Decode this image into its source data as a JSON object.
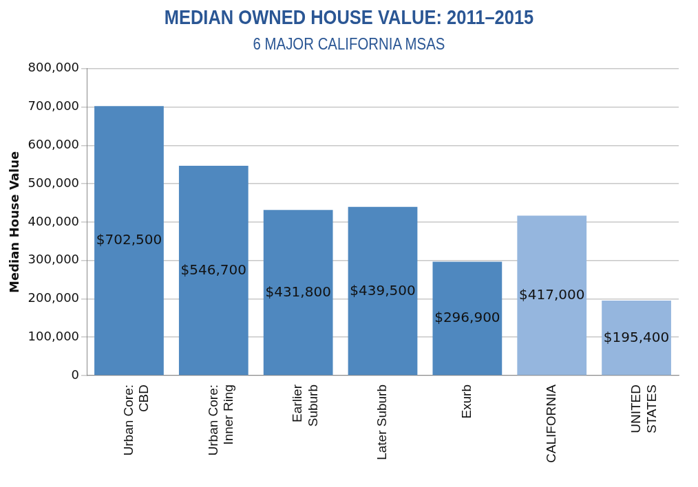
{
  "chart_data": {
    "type": "bar",
    "title": "MEDIAN OWNED HOUSE VALUE: 2011–2015",
    "subtitle": "6 MAJOR CALIFORNIA MSAS",
    "ylabel": "Median House Value",
    "categories": [
      "Urban Core:\nCBD",
      "Urban Core:\nInner Ring",
      "Earlier\nSuburb",
      "Later Suburb",
      "Exurb",
      "CALIFORNIA",
      "UNITED\nSTATES"
    ],
    "values": [
      702500,
      546700,
      431800,
      439500,
      296900,
      417000,
      195400
    ],
    "colors": [
      "#4f88bf",
      "#4f88bf",
      "#4f88bf",
      "#4f88bf",
      "#4f88bf",
      "#95b6de",
      "#95b6de"
    ],
    "value_labels": [
      "$702,500",
      "$546,700",
      "$431,800",
      "$439,500",
      "$296,900",
      "$417,000",
      "$195,400"
    ],
    "ylim": [
      0,
      800000
    ],
    "yticks": [
      {
        "value": 0,
        "label": "0"
      },
      {
        "value": 100000,
        "label": "100,000"
      },
      {
        "value": 200000,
        "label": "200,000"
      },
      {
        "value": 300000,
        "label": "300,000"
      },
      {
        "value": 400000,
        "label": "400,000"
      },
      {
        "value": 500000,
        "label": "500,000"
      },
      {
        "value": 600000,
        "label": "600,000"
      },
      {
        "value": 700000,
        "label": "700,000"
      },
      {
        "value": 800000,
        "label": "800,000"
      }
    ],
    "grid": "y",
    "legend": false
  }
}
